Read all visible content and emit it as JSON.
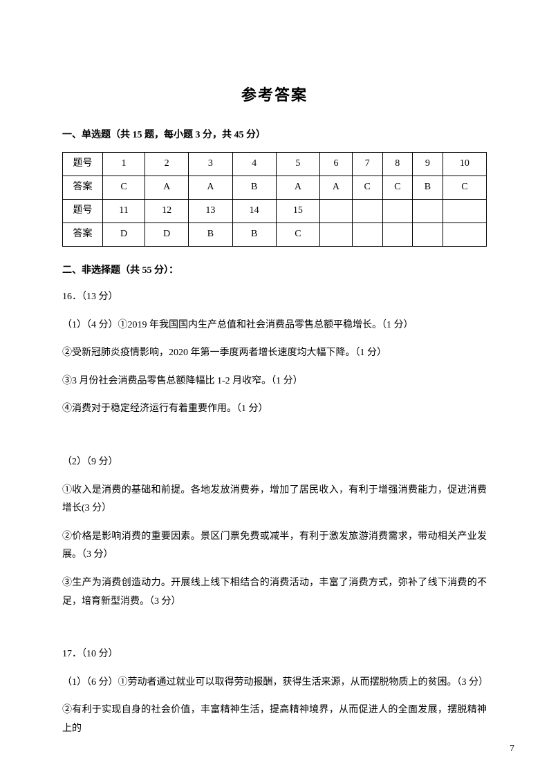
{
  "title": "参考答案",
  "section1": {
    "heading": "一、单选题（共 15 题，每小题 3 分，共 45 分）",
    "row1_label": "题号",
    "row1": [
      "1",
      "2",
      "3",
      "4",
      "5",
      "6",
      "7",
      "8",
      "9",
      "10"
    ],
    "row2_label": "答案",
    "row2": [
      "C",
      "A",
      "A",
      "B",
      "A",
      "A",
      "C",
      "C",
      "B",
      "C"
    ],
    "row3_label": "题号",
    "row3": [
      "11",
      "12",
      "13",
      "14",
      "15",
      "",
      "",
      "",
      "",
      ""
    ],
    "row4_label": "答案",
    "row4": [
      "D",
      "D",
      "B",
      "B",
      "C",
      "",
      "",
      "",
      "",
      ""
    ]
  },
  "section2": {
    "heading": "二、非选择题（共 55 分）：",
    "q16_head": "16．（13 分）",
    "q16_p1": "（1）（4 分）①2019 年我国国内生产总值和社会消费品零售总额平稳增长。（1 分）",
    "q16_p2": "②受新冠肺炎疫情影响，2020 年第一季度两者增长速度均大幅下降。（1 分）",
    "q16_p3": "③3 月份社会消费品零售总额降幅比 1-2 月收窄。（1 分）",
    "q16_p4": "④消费对于稳定经济运行有着重要作用。（1 分）",
    "q16_sub2": "（2）（9 分）",
    "q16_p5": "①收入是消费的基础和前提。各地发放消费券，增加了居民收入，有利于增强消费能力，促进消费增长(3 分）",
    "q16_p6": "②价格是影响消费的重要因素。景区门票免费或减半，有利于激发旅游消费需求，带动相关产业发展。（3 分）",
    "q16_p7": "③生产为消费创造动力。开展线上线下相结合的消费活动，丰富了消费方式，弥补了线下消费的不足，培育新型消费。（3 分）",
    "q17_head": "17．（10 分）",
    "q17_p1": "（1）（6 分）①劳动者通过就业可以取得劳动报酬，获得生活来源，从而摆脱物质上的贫困。（3 分）",
    "q17_p2": "②有利于实现自身的社会价值，丰富精神生活，提高精神境界，从而促进人的全面发展，摆脱精神上的"
  },
  "page_number": "7",
  "colors": {
    "text": "#000000",
    "bg": "#ffffff",
    "border": "#000000"
  }
}
